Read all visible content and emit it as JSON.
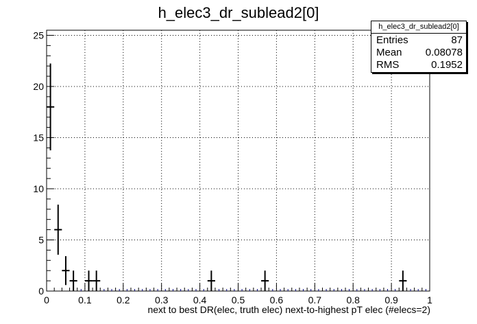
{
  "chart_data": {
    "type": "histogram",
    "title": "h_elec3_dr_sublead2[0]",
    "xlabel": "next to best DR(elec, truth elec) next-to-highest pT elec (#elecs=2)",
    "ylabel": "",
    "xlim": [
      0,
      1
    ],
    "ylim": [
      0,
      25.5
    ],
    "grid": true,
    "x_ticks": [
      0,
      0.1,
      0.2,
      0.3,
      0.4,
      0.5,
      0.6,
      0.7,
      0.8,
      0.9,
      1
    ],
    "x_tick_labels": [
      "0",
      "0.1",
      "0.2",
      "0.3",
      "0.4",
      "0.5",
      "0.6",
      "0.7",
      "0.8",
      "0.9",
      "1"
    ],
    "y_ticks": [
      0,
      5,
      10,
      15,
      20,
      25
    ],
    "y_tick_labels": [
      "0",
      "5",
      "10",
      "15",
      "20",
      "25"
    ],
    "bin_width": 0.02,
    "points": [
      {
        "x": 0.01,
        "y": 18
      },
      {
        "x": 0.03,
        "y": 6
      },
      {
        "x": 0.05,
        "y": 2
      },
      {
        "x": 0.07,
        "y": 1
      },
      {
        "x": 0.11,
        "y": 1
      },
      {
        "x": 0.13,
        "y": 1
      },
      {
        "x": 0.43,
        "y": 1
      },
      {
        "x": 0.57,
        "y": 1
      },
      {
        "x": 0.93,
        "y": 1
      }
    ],
    "stats": {
      "name": "h_elec3_dr_sublead2[0]",
      "rows": [
        {
          "label": "Entries",
          "value": "87"
        },
        {
          "label": "Mean",
          "value": "0.08078"
        },
        {
          "label": "RMS",
          "value": "0.1952"
        }
      ]
    }
  }
}
